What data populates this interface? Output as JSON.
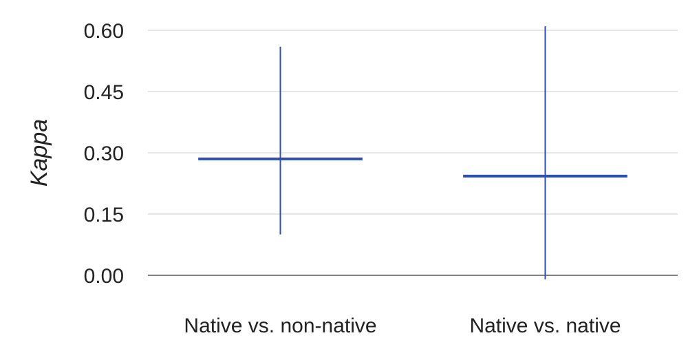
{
  "chart_data": {
    "type": "errorbar",
    "categories": [
      "Native vs. non-native",
      "Native vs. native"
    ],
    "series": [
      {
        "values": [
          0.285,
          0.243
        ],
        "lower": [
          0.1,
          -0.01
        ],
        "upper": [
          0.56,
          0.61
        ]
      }
    ],
    "ylabel": "Kappa",
    "xlabel": "",
    "ylim": [
      0,
      0.6
    ],
    "yticks": [
      "0.00",
      "0.15",
      "0.30",
      "0.45",
      "0.60"
    ],
    "grid": true,
    "colors": {
      "series": "#2f4fb0",
      "grid": "#cccccc",
      "axis": "#333333",
      "text": "#222222"
    }
  }
}
